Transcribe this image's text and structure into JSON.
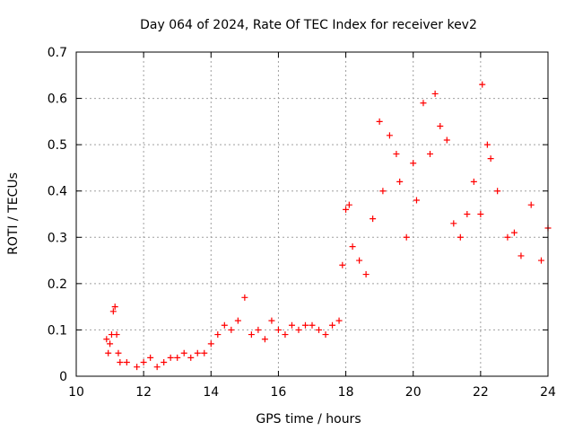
{
  "chart_data": {
    "type": "scatter",
    "title": "Day 064 of 2024, Rate Of TEC Index for receiver kev2",
    "xlabel": "GPS time / hours",
    "ylabel": "ROTI / TECUs",
    "xlim": [
      10,
      24
    ],
    "ylim": [
      0,
      0.7
    ],
    "x_ticks": [
      10,
      12,
      14,
      16,
      18,
      20,
      22,
      24
    ],
    "y_ticks": [
      0,
      0.1,
      0.2,
      0.3,
      0.4,
      0.5,
      0.6,
      0.7
    ],
    "x_tick_labels": [
      "10",
      "12",
      "14",
      "16",
      "18",
      "20",
      "22",
      "24"
    ],
    "y_tick_labels": [
      "0",
      "0.1",
      "0.2",
      "0.3",
      "0.4",
      "0.5",
      "0.6",
      "0.7"
    ],
    "grid": true,
    "marker": "+",
    "color": "#ff0000",
    "series": [
      {
        "name": "ROTI",
        "x": [
          10.9,
          10.95,
          11.0,
          11.05,
          11.1,
          11.15,
          11.2,
          11.25,
          11.3,
          11.5,
          11.8,
          12.0,
          12.2,
          12.4,
          12.6,
          12.8,
          13.0,
          13.2,
          13.4,
          13.6,
          13.8,
          14.0,
          14.2,
          14.4,
          14.6,
          14.8,
          15.0,
          15.2,
          15.4,
          15.6,
          15.8,
          16.0,
          16.2,
          16.4,
          16.6,
          16.8,
          17.0,
          17.2,
          17.4,
          17.6,
          17.8,
          17.9,
          18.0,
          18.1,
          18.2,
          18.4,
          18.6,
          18.8,
          19.0,
          19.1,
          19.3,
          19.5,
          19.6,
          19.8,
          20.0,
          20.1,
          20.3,
          20.5,
          20.65,
          20.8,
          21.0,
          21.2,
          21.4,
          21.6,
          21.8,
          22.0,
          22.05,
          22.2,
          22.3,
          22.5,
          22.8,
          23.0,
          23.2,
          23.5,
          23.8,
          24.0
        ],
        "y": [
          0.08,
          0.05,
          0.07,
          0.09,
          0.14,
          0.15,
          0.09,
          0.05,
          0.03,
          0.03,
          0.02,
          0.03,
          0.04,
          0.02,
          0.03,
          0.04,
          0.04,
          0.05,
          0.04,
          0.05,
          0.05,
          0.07,
          0.09,
          0.11,
          0.1,
          0.12,
          0.17,
          0.09,
          0.1,
          0.08,
          0.12,
          0.1,
          0.09,
          0.11,
          0.1,
          0.11,
          0.11,
          0.1,
          0.09,
          0.11,
          0.12,
          0.24,
          0.36,
          0.37,
          0.28,
          0.25,
          0.22,
          0.34,
          0.55,
          0.4,
          0.52,
          0.48,
          0.42,
          0.3,
          0.46,
          0.38,
          0.59,
          0.48,
          0.61,
          0.54,
          0.51,
          0.33,
          0.3,
          0.35,
          0.42,
          0.35,
          0.63,
          0.5,
          0.47,
          0.4,
          0.3,
          0.31,
          0.26,
          0.37,
          0.25,
          0.32
        ]
      }
    ]
  }
}
